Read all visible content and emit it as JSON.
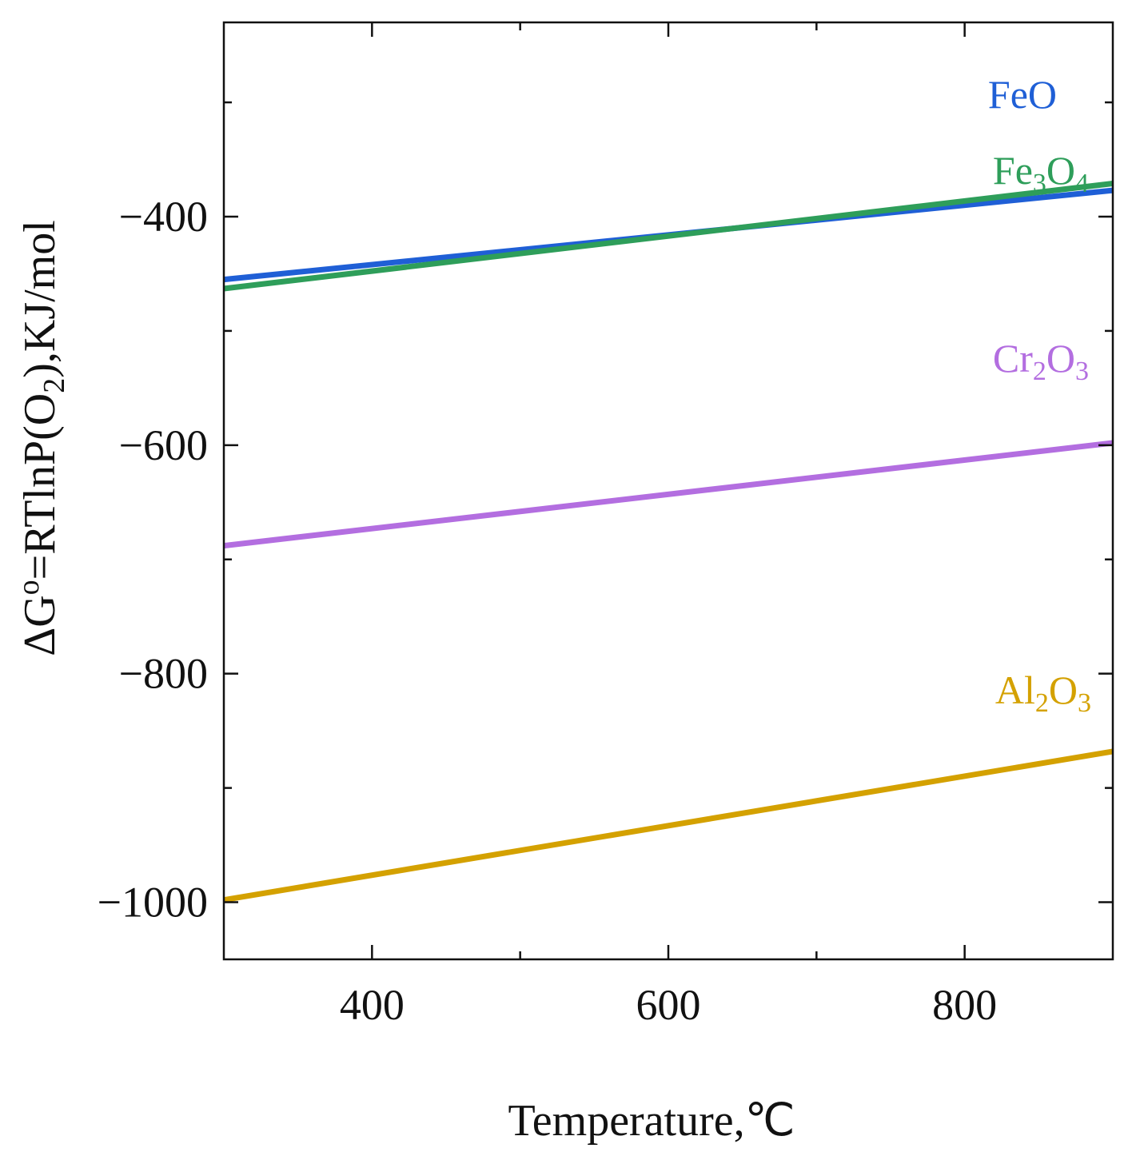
{
  "chart_data": {
    "type": "line",
    "title": "",
    "xlabel": "Temperature,℃",
    "ylabel_parts": [
      "ΔG",
      "o",
      "=RTlnP(O",
      "2",
      "),KJ/mol"
    ],
    "xlim": [
      300,
      900
    ],
    "ylim": [
      -1050,
      -230
    ],
    "x_major_ticks": [
      400,
      600,
      800
    ],
    "x_minor_ticks": [
      500,
      700
    ],
    "y_major_ticks": [
      -400,
      -600,
      -800,
      -1000
    ],
    "y_minor_ticks": [
      -300,
      -500,
      -700,
      -900
    ],
    "x_tick_labels": [
      "400",
      "600",
      "800"
    ],
    "y_tick_labels": [
      "−400",
      "−600",
      "−800",
      "−1000"
    ],
    "grid": false,
    "series": [
      {
        "key": "feo",
        "label_parts": [
          {
            "t": "FeO",
            "sub": false
          }
        ],
        "color": "#1f5fd6",
        "x": [
          300,
          900
        ],
        "y": [
          -455,
          -377
        ]
      },
      {
        "key": "fe3o4",
        "label_parts": [
          {
            "t": "Fe",
            "sub": false
          },
          {
            "t": "3",
            "sub": true
          },
          {
            "t": "O",
            "sub": false
          },
          {
            "t": "4",
            "sub": true
          }
        ],
        "color": "#2e9e5a",
        "x": [
          300,
          900
        ],
        "y": [
          -463,
          -371
        ]
      },
      {
        "key": "cr2o3",
        "label_parts": [
          {
            "t": "Cr",
            "sub": false
          },
          {
            "t": "2",
            "sub": true
          },
          {
            "t": "O",
            "sub": false
          },
          {
            "t": "3",
            "sub": true
          }
        ],
        "color": "#b36ee0",
        "x": [
          300,
          900
        ],
        "y": [
          -688,
          -598
        ]
      },
      {
        "key": "al2o3",
        "label_parts": [
          {
            "t": "Al",
            "sub": false
          },
          {
            "t": "2",
            "sub": true
          },
          {
            "t": "O",
            "sub": false
          },
          {
            "t": "3",
            "sub": true
          }
        ],
        "color": "#d4a100",
        "x": [
          300,
          900
        ],
        "y": [
          -998,
          -868
        ]
      }
    ]
  }
}
